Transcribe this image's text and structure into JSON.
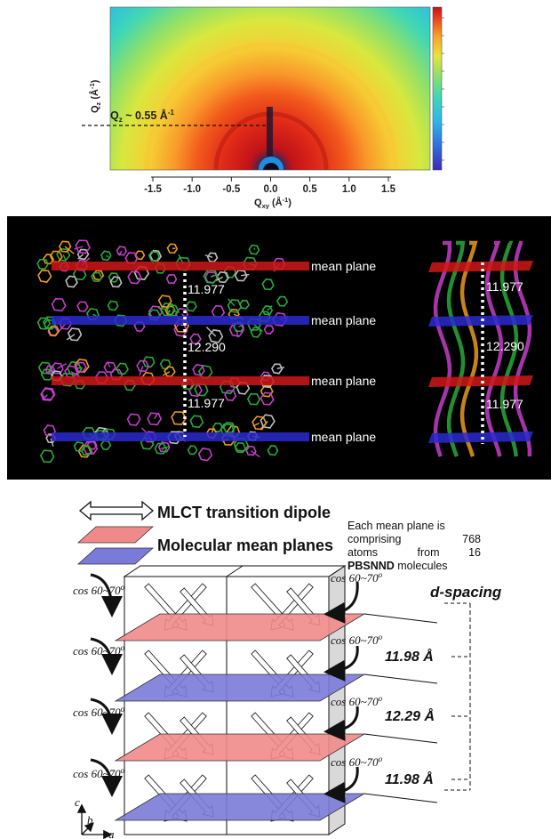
{
  "gixd": {
    "q_annotation": "Q",
    "q_annotation_sub": "z",
    "q_annotation_value": " ~ 0.55 Å",
    "q_annotation_sup": "-1",
    "y_axis_label": "Q",
    "y_axis_label_sub": "z",
    "y_axis_label_unit": " (Å",
    "y_axis_label_unit_sup": "-1",
    "y_axis_label_unit_close": ")",
    "x_axis_label": "Q",
    "x_axis_label_sub": "xy",
    "x_axis_label_unit": " (Å",
    "x_axis_label_unit_sup": "-1",
    "x_axis_label_unit_close": ")",
    "x_ticks": [
      "-1.5",
      "-1.0",
      "-0.5",
      "0.0",
      "0.5",
      "1.0",
      "1.5"
    ],
    "colormap": [
      "#3a2bb7",
      "#2f6fe0",
      "#2bb8e8",
      "#3fd7b5",
      "#8ee06a",
      "#e8e43a",
      "#f7a32a",
      "#ee4a1e",
      "#c0121a"
    ]
  },
  "packing": {
    "mean_plane_labels": [
      "mean plane",
      "mean plane",
      "mean plane",
      "mean plane"
    ],
    "plane_colors": [
      "#d01818",
      "#2a2ad0",
      "#d01818",
      "#2a2ad0"
    ],
    "spacings_left": [
      "11.977",
      "12.290",
      "11.977"
    ],
    "spacings_right": [
      "11.977",
      "12.290",
      "11.977"
    ]
  },
  "schematic": {
    "legend_dipole": "MLCT transition dipole",
    "legend_planes": "Molecular mean planes",
    "note_line1": "Each mean plane is",
    "note_line2_a": "comprising",
    "note_line2_b": "768",
    "note_line3_a": "atoms",
    "note_line3_b": "from",
    "note_line3_c": "16",
    "note_line4_bold": "PBSNND",
    "note_line4_rest": " molecules",
    "cos_label": "cos 60~70",
    "cos_sup": "o",
    "d_spacing_title": "d-spacing",
    "d_spacings": [
      "11.98 Å",
      "12.29 Å",
      "11.98 Å"
    ],
    "axis_c": "c",
    "axis_b": "b",
    "axis_a": "a",
    "plane_colors": [
      "#f08a8a",
      "#7a7ad8",
      "#f08a8a",
      "#7a7ad8"
    ]
  }
}
